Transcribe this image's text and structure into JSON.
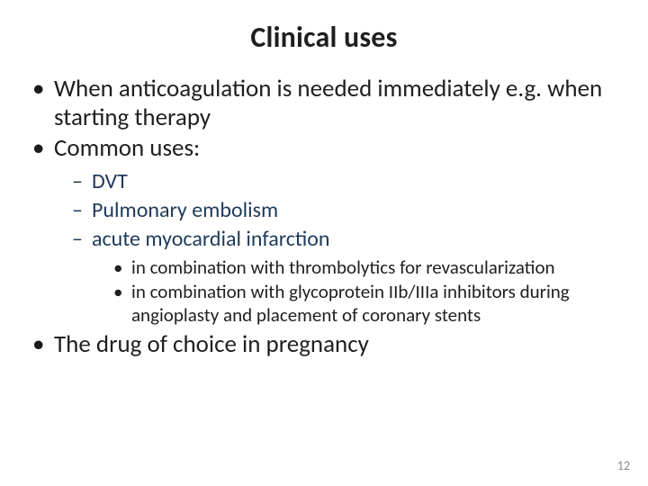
{
  "title": "Clinical uses",
  "bullets": {
    "b1": "When anticoagulation is needed immediately e.g. when starting therapy",
    "b2": " Common uses:",
    "sub": {
      "s1": "DVT",
      "s2": "Pulmonary embolism",
      "s3": "acute myocardial infarction",
      "s3_children": {
        "c1": "in combination with thrombolytics for revascularization",
        "c2": "in combination with glycoprotein IIb/IIIa inhibitors during angioplasty and placement of coronary stents"
      }
    },
    "b3": "The drug of choice in pregnancy"
  },
  "page_number": "12",
  "style": {
    "background_color": "#ffffff",
    "title_color": "#1f1f1f",
    "title_fontsize_pt": 32,
    "title_fontweight": 700,
    "body_color_lvl1": "#1f1f1f",
    "body_fontsize_lvl1_pt": 27,
    "body_color_lvl2": "#1f3a5a",
    "body_fontsize_lvl2_pt": 24,
    "body_color_lvl3": "#1f1f1f",
    "body_fontsize_lvl3_pt": 21,
    "page_number_color": "#8a8a8a",
    "page_number_fontsize_pt": 14,
    "font_family": "Calibri"
  }
}
